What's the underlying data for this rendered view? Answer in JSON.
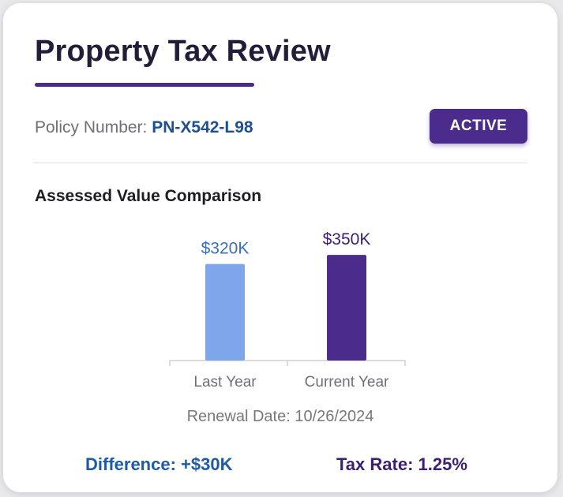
{
  "card": {
    "title": "Property Tax Review",
    "policy_label": "Policy Number: ",
    "policy_number": "PN-X542-L98",
    "status_badge": "ACTIVE",
    "section_title": "Assessed Value Comparison",
    "renewal_date": "Renewal Date: 10/26/2024",
    "difference": "Difference: +$30K",
    "tax_rate": "Tax Rate: 1.25%"
  },
  "colors": {
    "accent": "#4b2b8b",
    "link_blue": "#1e4f93",
    "bar_last_year": "#7fa6ea",
    "bar_current_year": "#4b2b8b"
  },
  "chart_data": {
    "type": "bar",
    "categories": [
      "Last Year",
      "Current Year"
    ],
    "values": [
      320,
      350
    ],
    "value_labels": [
      "$320K",
      "$350K"
    ],
    "bar_colors": [
      "#7fa6ea",
      "#4b2b8b"
    ],
    "label_colors": [
      "#3a6fc0",
      "#3b1f73"
    ],
    "title": "",
    "xlabel": "",
    "ylabel": "",
    "ylim": [
      0,
      366
    ],
    "grid": false
  }
}
